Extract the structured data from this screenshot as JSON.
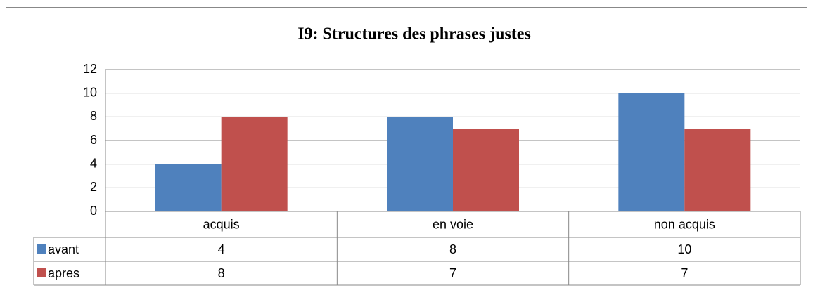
{
  "chart_data": {
    "type": "bar",
    "title": "I9: Structures des phrases justes",
    "categories": [
      "acquis",
      "en voie",
      "non acquis"
    ],
    "series": [
      {
        "name": "avant",
        "color": "#4f81bd",
        "values": [
          4,
          8,
          10
        ]
      },
      {
        "name": "apres",
        "color": "#c0504d",
        "values": [
          8,
          7,
          7
        ]
      }
    ],
    "ylim": [
      0,
      12
    ],
    "yticks": [
      0,
      2,
      4,
      6,
      8,
      10,
      12
    ],
    "grid": true
  }
}
